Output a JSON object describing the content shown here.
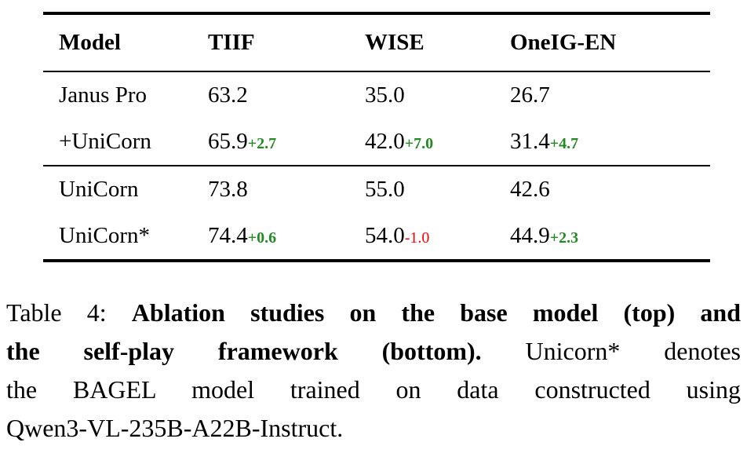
{
  "table": {
    "headers": [
      "Model",
      "TIIF",
      "WISE",
      "OneIG-EN"
    ],
    "rows": [
      {
        "model": "Janus Pro",
        "cells": [
          {
            "value": "63.2"
          },
          {
            "value": "35.0"
          },
          {
            "value": "26.7"
          }
        ]
      },
      {
        "model": "+UniCorn",
        "cells": [
          {
            "value": "65.9",
            "delta": "+2.7",
            "delta_color": "#228B22"
          },
          {
            "value": "42.0",
            "delta": "+7.0",
            "delta_color": "#228B22"
          },
          {
            "value": "31.4",
            "delta": "+4.7",
            "delta_color": "#228B22"
          }
        ]
      },
      {
        "model": "UniCorn",
        "cells": [
          {
            "value": "73.8"
          },
          {
            "value": "55.0"
          },
          {
            "value": "42.6"
          }
        ]
      },
      {
        "model": "UniCorn*",
        "cells": [
          {
            "value": "74.4",
            "delta": "+0.6",
            "delta_color": "#228B22"
          },
          {
            "value": "54.0",
            "delta": "-1.0",
            "delta_color": "#FF0000",
            "delta_weight": "normal"
          },
          {
            "value": "44.9",
            "delta": "+2.3",
            "delta_color": "#228B22"
          }
        ]
      }
    ]
  },
  "caption": {
    "lines": [
      {
        "segments": [
          {
            "text": "Table 4: "
          },
          {
            "text": "Ablation studies on the base model (top) and"
          }
        ]
      },
      {
        "segments": [
          {
            "text": "the self-play framework (bottom)."
          },
          {
            "text": " Unicorn* denotes"
          }
        ]
      },
      {
        "segments": [
          {
            "text": "the BAGEL model trained on data constructed using"
          }
        ]
      },
      {
        "segments": [
          {
            "text": "Qwen3-VL-235B-A22B-Instruct."
          }
        ]
      }
    ]
  },
  "colors": {
    "positive_delta": "#228B22",
    "negative_delta": "#FF0000",
    "text": "#000000",
    "background": "#FFFFFF"
  }
}
